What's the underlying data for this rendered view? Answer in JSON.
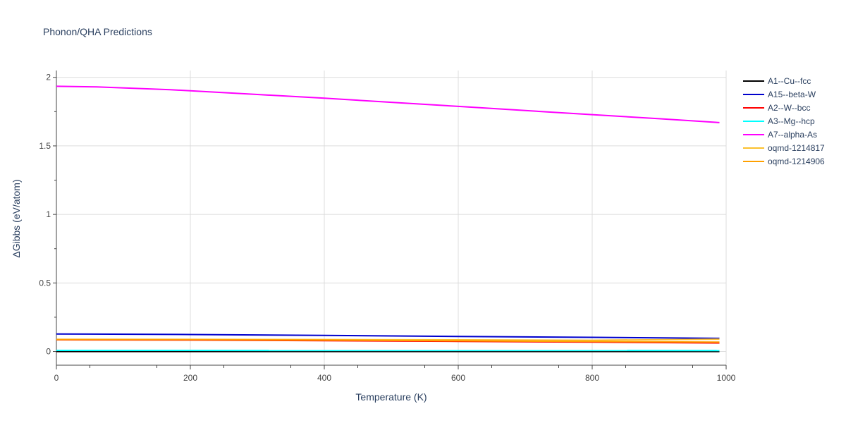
{
  "chart_data": {
    "type": "line",
    "title": "Phonon/QHA Predictions",
    "xlabel": "Temperature (K)",
    "ylabel": "ΔGibbs (eV/atom)",
    "xlim": [
      0,
      1000
    ],
    "ylim": [
      -0.1,
      2.05
    ],
    "xticks": [
      0,
      200,
      400,
      600,
      800,
      1000
    ],
    "xtick_labels": [
      "0",
      "200",
      "400",
      "600",
      "800",
      "1000"
    ],
    "yticks": [
      0,
      0.5,
      1,
      1.5,
      2
    ],
    "ytick_labels": [
      "0",
      "0.5",
      "1",
      "1.5",
      "2"
    ],
    "grid": true,
    "legend_position": "right",
    "series": [
      {
        "name": "A1--Cu--fcc",
        "color": "#000000",
        "x": [
          0,
          990
        ],
        "y": [
          0.0,
          0.0
        ]
      },
      {
        "name": "A15--beta-W",
        "color": "#0000cc",
        "x": [
          0,
          200,
          400,
          600,
          800,
          990
        ],
        "y": [
          0.128,
          0.124,
          0.117,
          0.11,
          0.103,
          0.096
        ]
      },
      {
        "name": "A2--W--bcc",
        "color": "#ff0000",
        "x": [
          0,
          200,
          400,
          600,
          800,
          990
        ],
        "y": [
          0.085,
          0.083,
          0.079,
          0.074,
          0.068,
          0.062
        ]
      },
      {
        "name": "A3--Mg--hcp",
        "color": "#00ffff",
        "x": [
          0,
          990
        ],
        "y": [
          0.008,
          0.007
        ]
      },
      {
        "name": "A7--alpha-As",
        "color": "#ff00ff",
        "x": [
          0,
          60,
          170,
          300,
          400,
          500,
          600,
          700,
          800,
          900,
          990
        ],
        "y": [
          1.935,
          1.93,
          1.91,
          1.875,
          1.848,
          1.818,
          1.788,
          1.758,
          1.728,
          1.698,
          1.67
        ]
      },
      {
        "name": "oqmd-1214817",
        "color": "#fbc02d",
        "x": [
          0,
          200,
          400,
          600,
          800,
          990
        ],
        "y": [
          0.088,
          0.088,
          0.087,
          0.085,
          0.082,
          0.09
        ]
      },
      {
        "name": "oqmd-1214906",
        "color": "#ffa000",
        "x": [
          0,
          200,
          400,
          600,
          800,
          990
        ],
        "y": [
          0.087,
          0.086,
          0.083,
          0.078,
          0.073,
          0.068
        ]
      }
    ]
  }
}
